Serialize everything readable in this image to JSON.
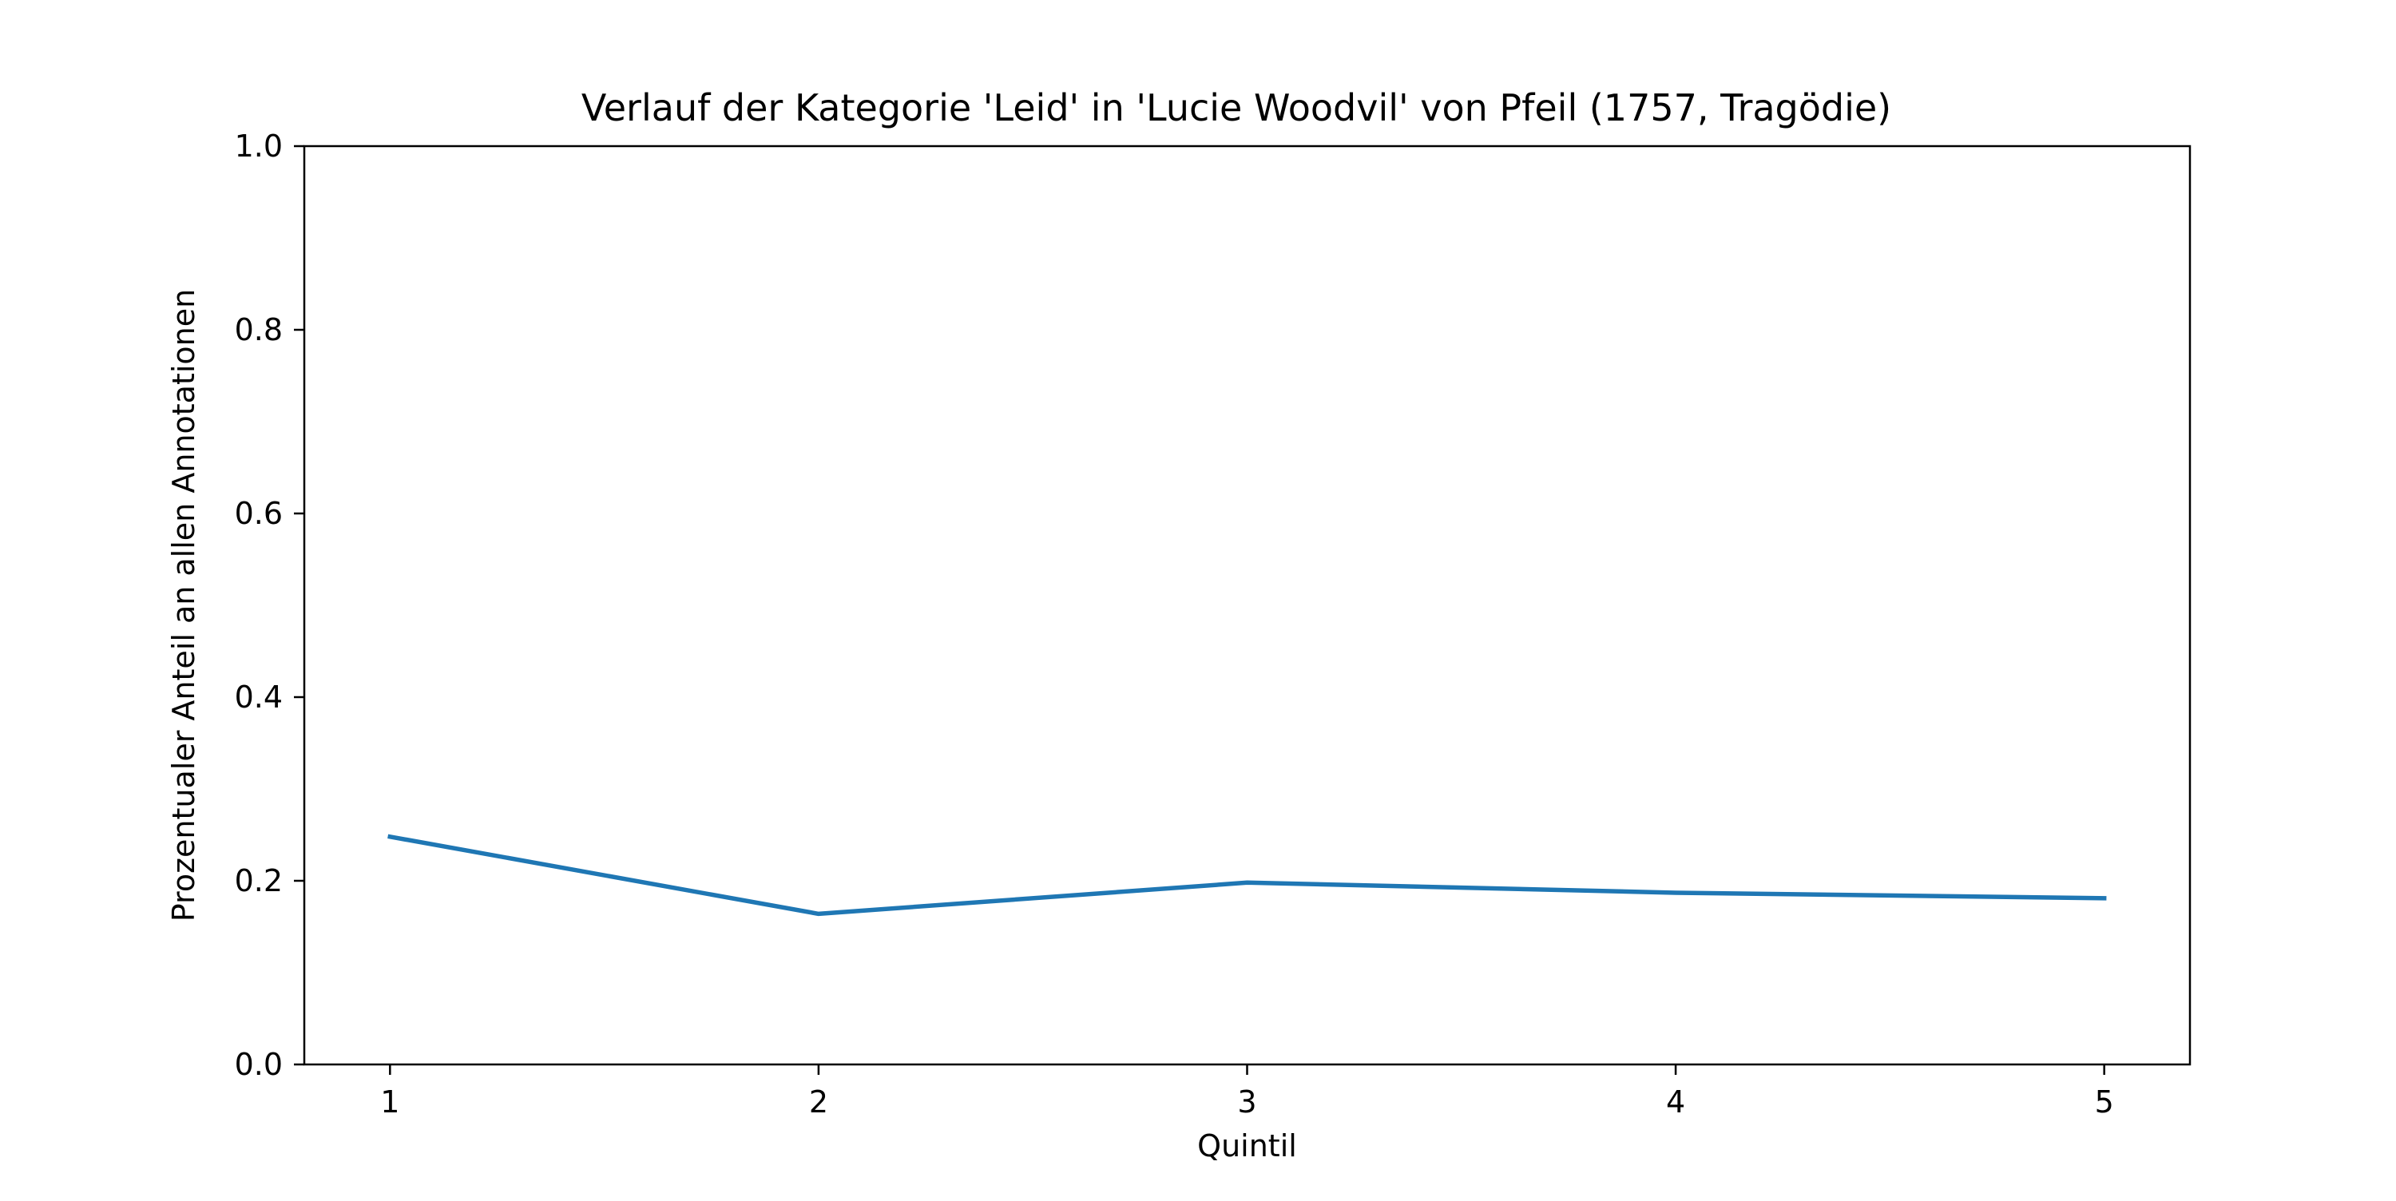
{
  "chart_data": {
    "type": "line",
    "title": "Verlauf der Kategorie 'Leid' in 'Lucie Woodvil' von Pfeil (1757, Tragödie)",
    "xlabel": "Quintil",
    "ylabel": "Prozentualer Anteil an allen Annotationen",
    "x": [
      1,
      2,
      3,
      4,
      5
    ],
    "x_tick_labels": [
      "1",
      "2",
      "3",
      "4",
      "5"
    ],
    "xlim": [
      0.8,
      5.2
    ],
    "ylim": [
      0.0,
      1.0
    ],
    "y_ticks": [
      0.0,
      0.2,
      0.4,
      0.6,
      0.8,
      1.0
    ],
    "y_tick_labels": [
      "0.0",
      "0.2",
      "0.4",
      "0.6",
      "0.8",
      "1.0"
    ],
    "grid": false,
    "series": [
      {
        "values": [
          0.248,
          0.164,
          0.198,
          0.187,
          0.181
        ],
        "color": "#1f77b4"
      }
    ]
  }
}
